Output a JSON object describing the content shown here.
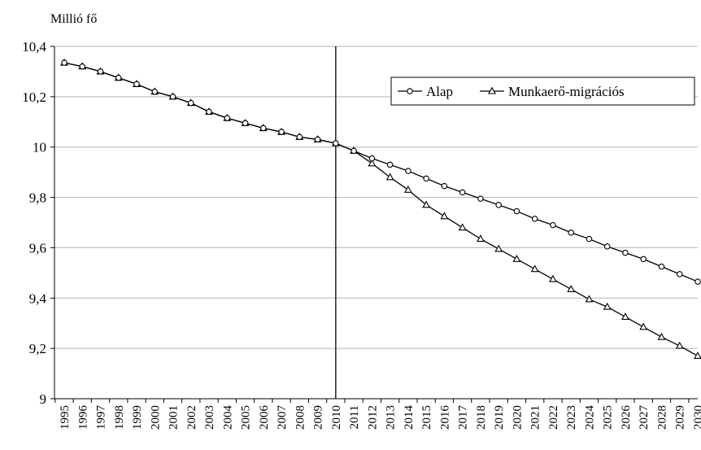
{
  "chart_data": {
    "type": "line",
    "ylabel": "Millió fő",
    "ylim": [
      9,
      10.4
    ],
    "yticks": [
      9,
      9.2,
      9.4,
      9.6,
      9.8,
      10,
      10.2,
      10.4
    ],
    "ytick_labels": [
      "9",
      "9,2",
      "9,4",
      "9,6",
      "9,8",
      "10",
      "10,2",
      "10,4"
    ],
    "grid": "horizontal",
    "legend_position": "top-right",
    "x": [
      "1995",
      "1996",
      "1997",
      "1998",
      "1999",
      "2000",
      "2001",
      "2002",
      "2003",
      "2004",
      "2005",
      "2006",
      "2007",
      "2008",
      "2009",
      "2010",
      "2011",
      "2012",
      "2013",
      "2014",
      "2015",
      "2016",
      "2017",
      "2018",
      "2019",
      "2020",
      "2021",
      "2022",
      "2023",
      "2024",
      "2025",
      "2026",
      "2027",
      "2028",
      "2029",
      "2030"
    ],
    "vertical_marker": "2010",
    "series": [
      {
        "name": "Alap",
        "marker": "circle",
        "values": [
          10.335,
          10.32,
          10.3,
          10.275,
          10.25,
          10.22,
          10.2,
          10.175,
          10.14,
          10.115,
          10.095,
          10.075,
          10.06,
          10.04,
          10.03,
          10.015,
          9.985,
          9.955,
          9.93,
          9.905,
          9.875,
          9.845,
          9.82,
          9.795,
          9.77,
          9.745,
          9.715,
          9.69,
          9.66,
          9.635,
          9.605,
          9.58,
          9.555,
          9.525,
          9.495,
          9.465
        ]
      },
      {
        "name": "Munkaerő-migrációs",
        "marker": "triangle",
        "values": [
          10.335,
          10.32,
          10.3,
          10.275,
          10.25,
          10.22,
          10.2,
          10.175,
          10.14,
          10.115,
          10.095,
          10.075,
          10.06,
          10.04,
          10.03,
          10.015,
          9.985,
          9.935,
          9.88,
          9.83,
          9.77,
          9.725,
          9.68,
          9.635,
          9.595,
          9.555,
          9.515,
          9.475,
          9.435,
          9.395,
          9.365,
          9.325,
          9.285,
          9.245,
          9.21,
          9.17
        ]
      }
    ]
  }
}
